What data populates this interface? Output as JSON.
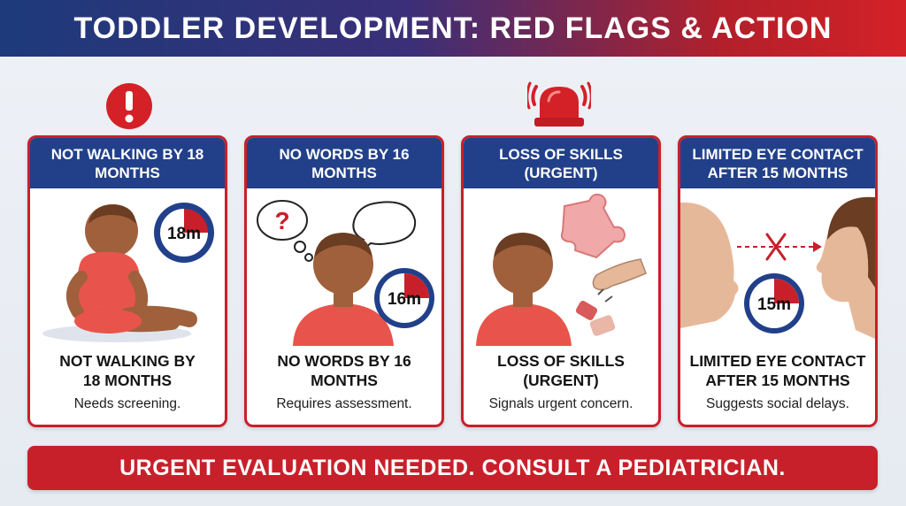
{
  "header": {
    "title": "TODDLER DEVELOPMENT: RED FLAGS & ACTION"
  },
  "colors": {
    "navy": "#22408a",
    "red": "#c8202a",
    "skin": "#a0603c",
    "shirt": "#e8544b"
  },
  "cards": [
    {
      "header": "NOT WALKING BY 18 MONTHS",
      "title": "NOT WALKING BY 18 MONTHS",
      "desc": "Needs screening.",
      "timer": "18m",
      "timer_fill_fraction": 0.25
    },
    {
      "header": "NO WORDS BY 16 MONTHS",
      "title": "NO WORDS BY 16 MONTHS",
      "desc": "Requires assessment.",
      "timer": "16m",
      "timer_fill_fraction": 0.25
    },
    {
      "header": "LOSS OF SKILLS (URGENT)",
      "title": "LOSS OF SKILLS (URGENT)",
      "desc": "Signals urgent concern."
    },
    {
      "header": "LIMITED EYE CONTACT AFTER 15 MONTHS",
      "title": "LIMITED EYE CONTACT AFTER 15 MONTHS",
      "desc": "Suggests social delays.",
      "timer": "15m",
      "timer_fill_fraction": 0.25
    }
  ],
  "icons": {
    "alert": "exclamation-alert-icon",
    "alarm": "alarm-bell-icon"
  },
  "footer": {
    "text": "URGENT EVALUATION NEEDED. CONSULT A PEDIATRICIAN."
  }
}
